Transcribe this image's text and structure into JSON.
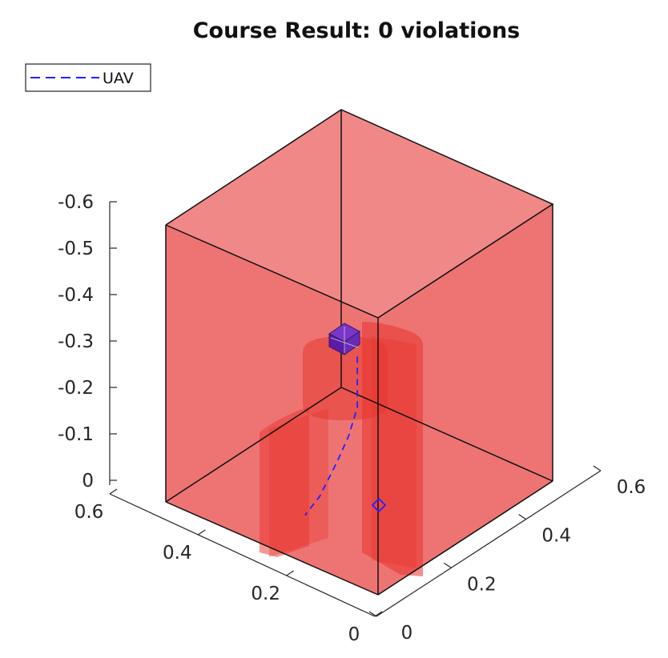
{
  "chart_data": {
    "type": "3d-scatter-path",
    "title": "Course Result: 0 violations",
    "legend": {
      "placement": "top-left",
      "entries": [
        "UAV"
      ]
    },
    "series": [
      {
        "name": "UAV",
        "style": "dashed",
        "color": "#2222ff",
        "points": [
          {
            "x": 0.33,
            "y": 0.33,
            "z": -0.27
          },
          {
            "x": 0.33,
            "y": 0.33,
            "z": -0.22
          },
          {
            "x": 0.33,
            "y": 0.33,
            "z": -0.16
          },
          {
            "x": 0.33,
            "y": 0.3,
            "z": -0.11
          },
          {
            "x": 0.33,
            "y": 0.26,
            "z": -0.07
          },
          {
            "x": 0.33,
            "y": 0.2,
            "z": -0.02
          },
          {
            "x": 0.33,
            "y": 0.15,
            "z": 0.0
          }
        ]
      }
    ],
    "axes": {
      "x": {
        "range": [
          0,
          0.6
        ],
        "ticks": [
          "0",
          "0.2",
          "0.4",
          "0.6"
        ]
      },
      "y": {
        "range": [
          0,
          0.6
        ],
        "ticks": [
          "0",
          "0.2",
          "0.4",
          "0.6"
        ]
      },
      "z": {
        "range": [
          0,
          -0.6
        ],
        "ticks": [
          "0",
          "-0.1",
          "-0.2",
          "-0.3",
          "-0.4",
          "-0.5",
          "-0.6"
        ]
      }
    },
    "grid": false,
    "colors": {
      "obstacle": "#ee3a33",
      "uav": "#2222ff",
      "target": "#5a1aa8"
    }
  }
}
